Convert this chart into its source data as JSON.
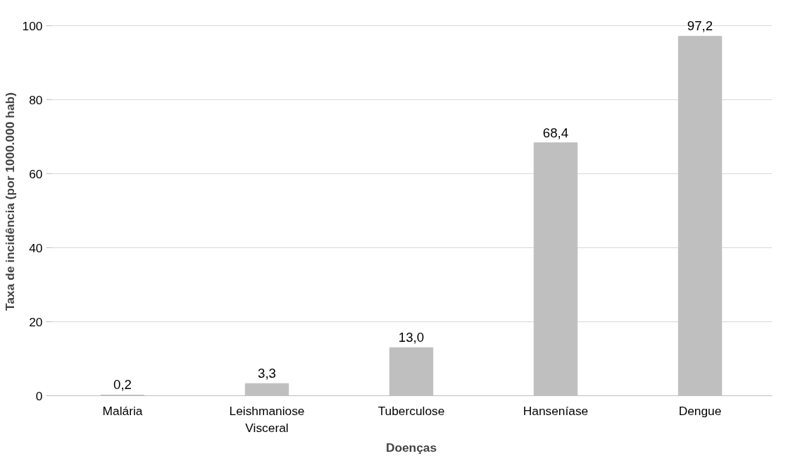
{
  "chart_data": {
    "type": "bar",
    "xlabel": "Doenças",
    "ylabel": "Taxa de incidência (por 1000.000 hab)",
    "categories": [
      "Malária",
      "Leishmaniose Visceral",
      "Tuberculose",
      "Hanseníase",
      "Dengue"
    ],
    "values": [
      0.2,
      3.3,
      13.0,
      68.4,
      97.2
    ],
    "value_labels": [
      "0,2",
      "3,3",
      "13,0",
      "68,4",
      "97,2"
    ],
    "color": "#bfbfbf",
    "ylim": [
      0,
      100
    ],
    "yticks": [
      0,
      20,
      40,
      60,
      80,
      100
    ],
    "grid": "y"
  }
}
